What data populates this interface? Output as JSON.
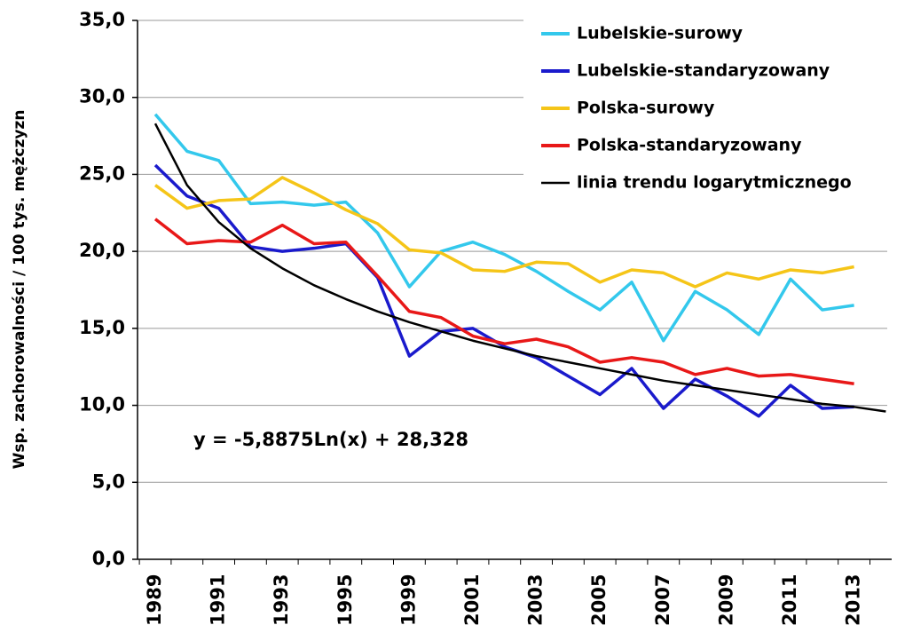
{
  "chart_data": {
    "type": "line",
    "y_label": "Wsp. zachorowalności / 100 tys. mężczyzn",
    "annotation": "y = -5,8875Ln(x) + 28,328",
    "categories": [
      "1989",
      null,
      "1991",
      null,
      "1993",
      null,
      "1995",
      null,
      "1999",
      null,
      "2001",
      null,
      "2003",
      null,
      "2005",
      null,
      "2007",
      null,
      "2009",
      null,
      "2011",
      null,
      "2013",
      null
    ],
    "series": [
      {
        "name": "Lubelskie-surowy",
        "color": "#33c8ec",
        "values": [
          28.9,
          26.5,
          25.9,
          23.1,
          23.2,
          23.0,
          23.2,
          21.2,
          17.7,
          20.0,
          20.6,
          19.8,
          18.7,
          17.4,
          16.2,
          18.0,
          14.2,
          17.4,
          16.2,
          14.6,
          18.2,
          16.2,
          16.5,
          null
        ]
      },
      {
        "name": "Lubelskie-standaryzowany",
        "color": "#1a1acc",
        "values": [
          25.6,
          23.6,
          22.8,
          20.3,
          20.0,
          20.2,
          20.5,
          18.3,
          13.2,
          14.8,
          15.0,
          13.8,
          13.1,
          11.9,
          10.7,
          12.4,
          9.8,
          11.7,
          10.6,
          9.3,
          11.3,
          9.8,
          9.9,
          null
        ]
      },
      {
        "name": "Polska-surowy",
        "color": "#f5c518",
        "values": [
          24.3,
          22.8,
          23.3,
          23.4,
          24.8,
          23.8,
          22.7,
          21.8,
          20.1,
          19.9,
          18.8,
          18.7,
          19.3,
          19.2,
          18.0,
          18.8,
          18.6,
          17.7,
          18.6,
          18.2,
          18.8,
          18.6,
          19.0,
          null
        ]
      },
      {
        "name": "Polska-standaryzowany",
        "color": "#e81818",
        "values": [
          22.1,
          20.5,
          20.7,
          20.6,
          21.7,
          20.5,
          20.6,
          18.4,
          16.1,
          15.7,
          14.5,
          14.0,
          14.3,
          13.8,
          12.8,
          13.1,
          12.8,
          12.0,
          12.4,
          11.9,
          12.0,
          11.7,
          11.4,
          null
        ]
      },
      {
        "name": "linia trendu logarytmicznego",
        "color": "#000000",
        "values": [
          28.3,
          24.3,
          21.9,
          20.2,
          18.9,
          17.8,
          16.9,
          16.1,
          15.4,
          14.8,
          14.2,
          13.7,
          13.2,
          12.8,
          12.4,
          12.0,
          11.6,
          11.3,
          11.0,
          10.7,
          10.4,
          10.1,
          9.9,
          9.6
        ]
      }
    ],
    "ylim": [
      0,
      35
    ],
    "yticks": [
      {
        "value": 0,
        "label": "0,0"
      },
      {
        "value": 5,
        "label": "5,0"
      },
      {
        "value": 10,
        "label": "10,0"
      },
      {
        "value": 15,
        "label": "15,0"
      },
      {
        "value": 20,
        "label": "20,0"
      },
      {
        "value": 25,
        "label": "25,0"
      },
      {
        "value": 30,
        "label": "30,0"
      },
      {
        "value": 35,
        "label": "35,0"
      }
    ],
    "grid": true
  }
}
